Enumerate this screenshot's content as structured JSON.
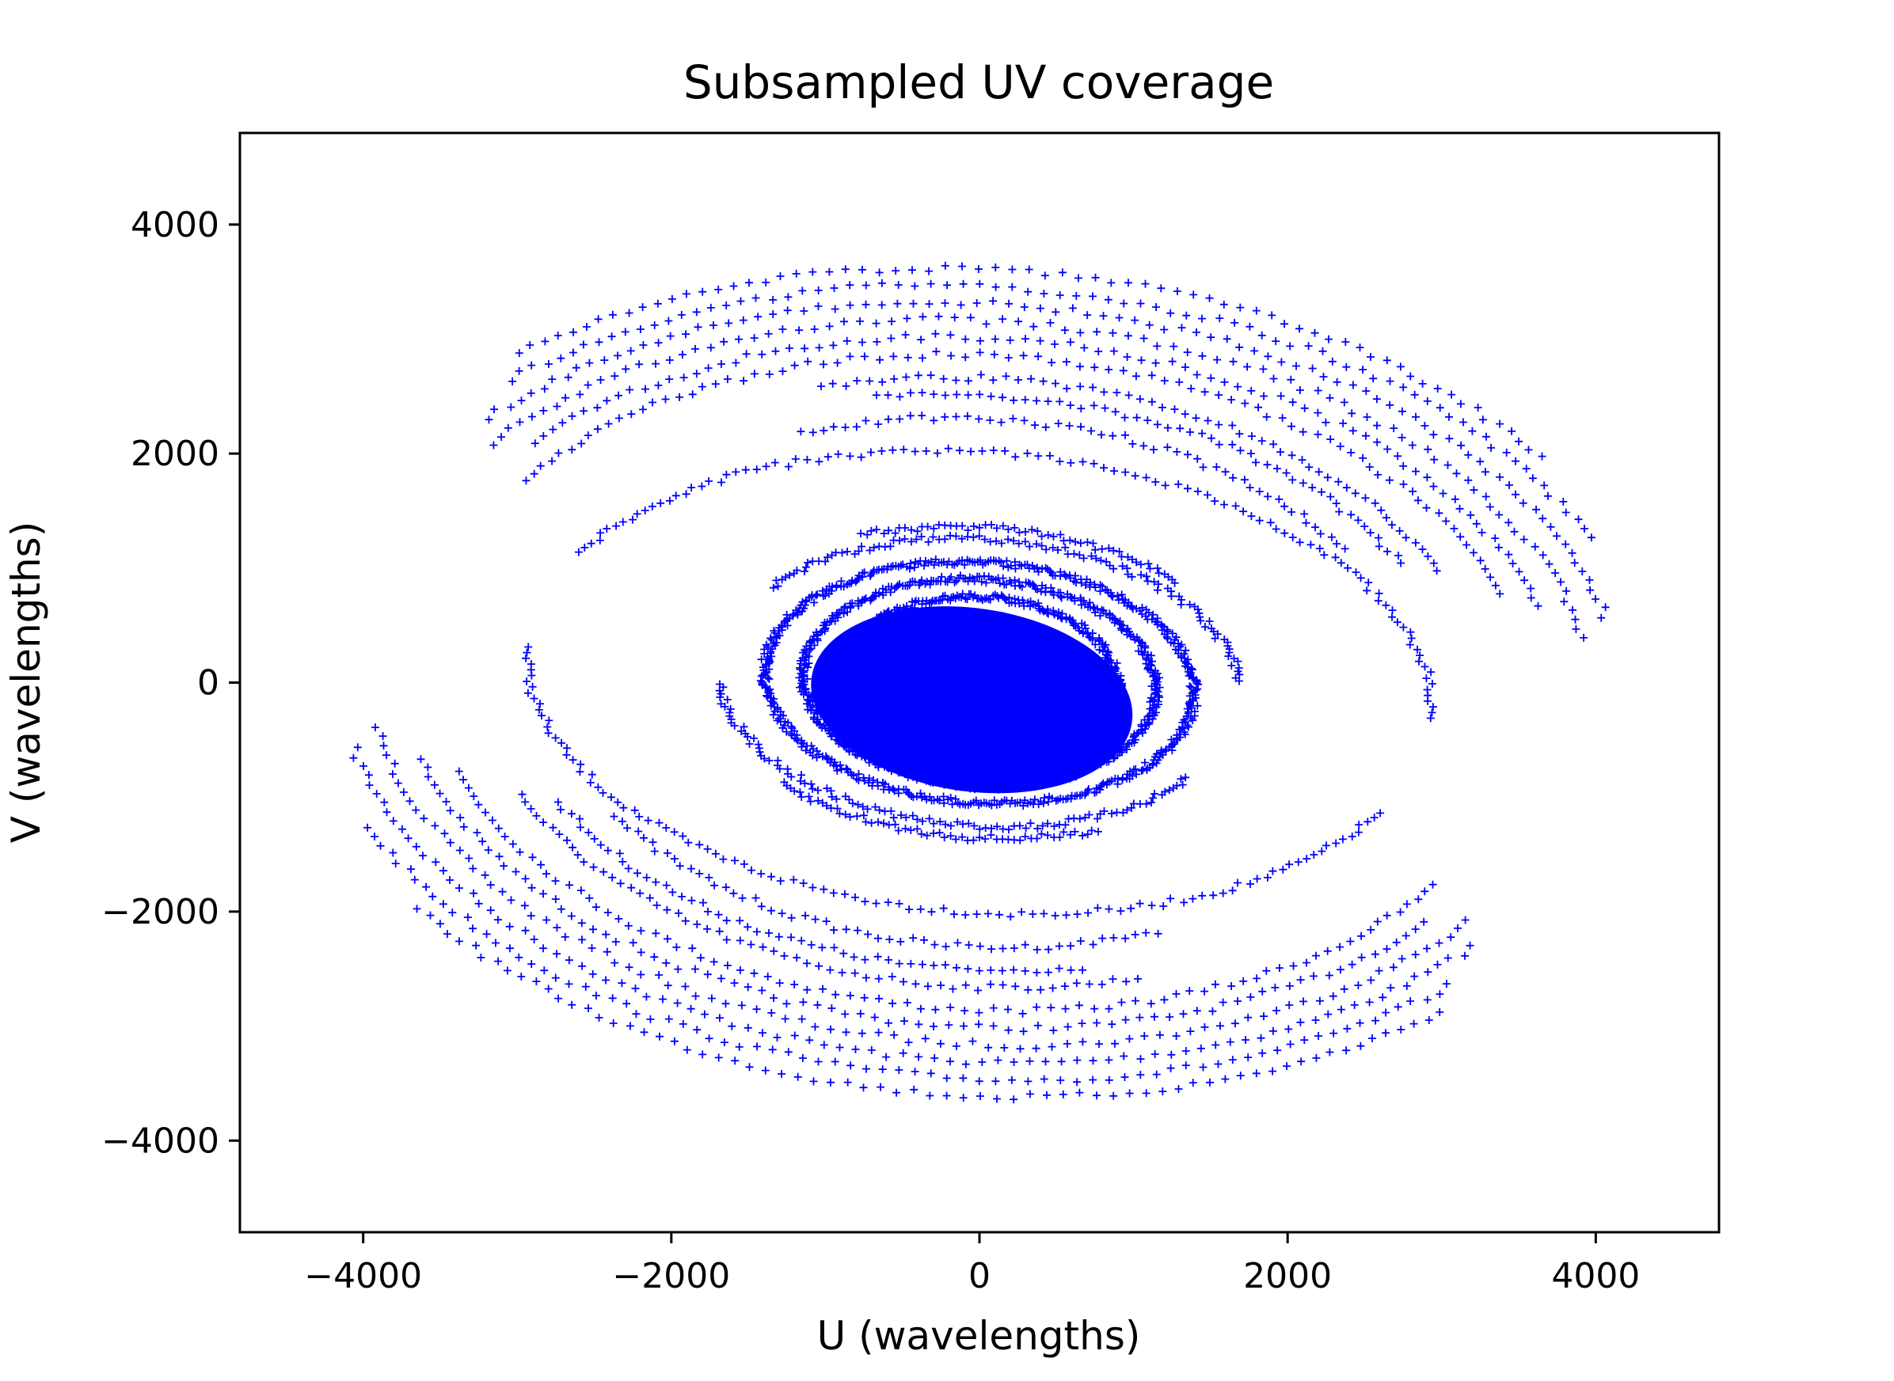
{
  "chart_data": {
    "type": "scatter",
    "title": "Subsampled UV coverage",
    "xlabel": "U (wavelengths)",
    "ylabel": "V (wavelengths)",
    "xlim": [
      -4800,
      4800
    ],
    "ylim": [
      -4800,
      4800
    ],
    "x_ticks": [
      -4000,
      -2000,
      0,
      2000,
      4000
    ],
    "y_ticks": [
      -4000,
      -2000,
      0,
      2000,
      4000
    ],
    "x_tick_labels": [
      "−4000",
      "−2000",
      "0",
      "2000",
      "4000"
    ],
    "y_tick_labels": [
      "−4000",
      "−2000",
      "0",
      "2000",
      "4000"
    ],
    "marker": "+",
    "color": "#0000ff",
    "grid": false,
    "legend": "none",
    "series": [
      {
        "values_description_tracks": [
          {
            "a": 4200,
            "b": 3300,
            "t0": 0.35,
            "t1": 2.55,
            "n": 90
          },
          {
            "a": 4000,
            "b": 3150,
            "t0": 0.3,
            "t1": 2.6,
            "n": 90
          },
          {
            "a": 3800,
            "b": 3000,
            "t0": 0.4,
            "t1": 2.55,
            "n": 85
          },
          {
            "a": 3600,
            "b": 2850,
            "t0": 0.45,
            "t1": 2.65,
            "n": 85
          },
          {
            "a": 4400,
            "b": 3450,
            "t0": 0.55,
            "t1": 2.45,
            "n": 80
          },
          {
            "a": 4550,
            "b": 3600,
            "t0": 0.75,
            "t1": 2.4,
            "n": 70
          },
          {
            "a": 3300,
            "b": 2650,
            "t0": 0.55,
            "t1": 2.0,
            "n": 60
          },
          {
            "a": 3100,
            "b": 2500,
            "t0": 0.6,
            "t1": 1.9,
            "n": 55
          },
          {
            "a": 2850,
            "b": 2300,
            "t0": 0.7,
            "t1": 2.1,
            "n": 55
          },
          {
            "a": 2950,
            "b": 2000,
            "t0": 0.05,
            "t1": 2.75,
            "n": 110
          },
          {
            "a": 1400,
            "b": 1050,
            "t0": 0.0,
            "t1": 6.28,
            "n": 260
          },
          {
            "a": 1150,
            "b": 900,
            "t0": 0.0,
            "t1": 6.28,
            "n": 240
          },
          {
            "a": 900,
            "b": 750,
            "t0": 0.0,
            "t1": 6.28,
            "n": 220
          },
          {
            "a": 650,
            "b": 550,
            "t0": 0.0,
            "t1": 6.28,
            "n": 200
          },
          {
            "a": 1700,
            "b": 1250,
            "t0": 0.2,
            "t1": 2.6,
            "n": 110
          },
          {
            "a": 1850,
            "b": 1350,
            "t0": 0.9,
            "t1": 2.1,
            "n": 60
          }
        ],
        "symmetry": "point-symmetric (u,v) and (-u,-v)",
        "rotation_deg": -8
      }
    ]
  }
}
